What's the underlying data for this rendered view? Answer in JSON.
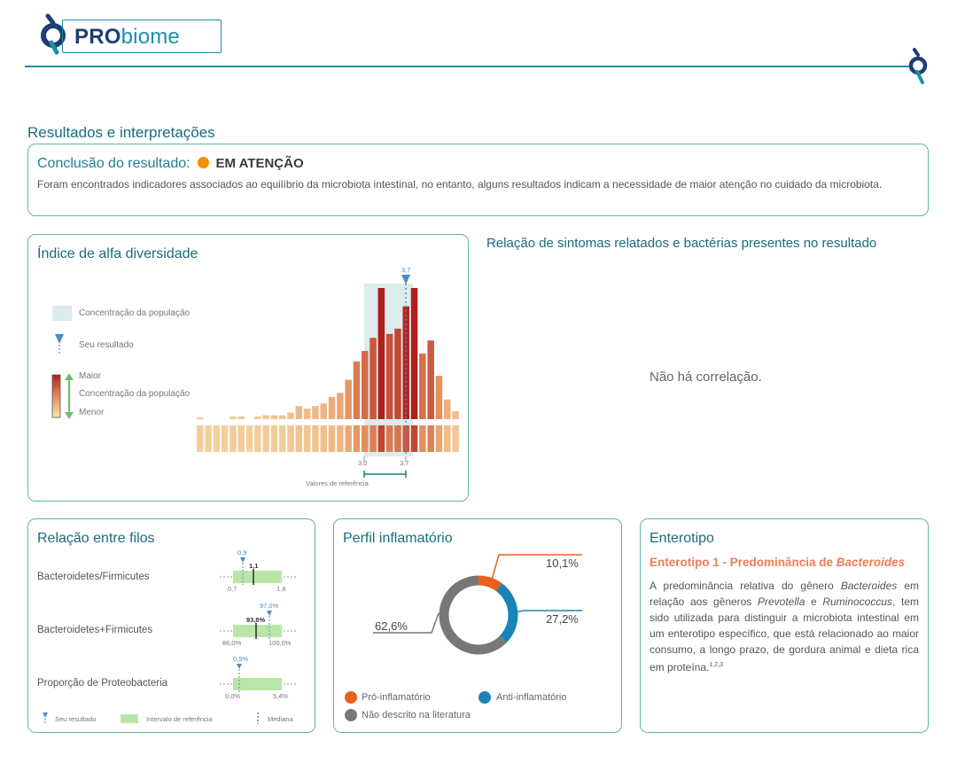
{
  "brand": {
    "pro": "PRO",
    "biome": "biome"
  },
  "section_title": "Resultados e interpretações",
  "conclusion": {
    "label": "Conclusão do resultado:",
    "status": "EM ATENÇÃO",
    "status_color": "#f39200",
    "text": "Foram encontrados indicadores associados ao equilíbrio da microbiota intestinal, no entanto, alguns resultados indicam a necessidade de maior atenção no cuidado da microbiota."
  },
  "alpha": {
    "title": "Índice de alfa diversidade",
    "legend_population": "Concentração da população",
    "legend_result": "Seu resultado",
    "legend_major": "Maior",
    "legend_concentration": "Concentração da população",
    "legend_minor": "Menor",
    "result_value": "3,7",
    "ref_low": "3,0",
    "ref_high": "3,7",
    "ref_label": "Valores de referência"
  },
  "chart_data": {
    "type": "bar",
    "title": "Índice de alfa diversidade",
    "bar_heights_relative": [
      0.01,
      0,
      0,
      0,
      0.02,
      0.02,
      0,
      0.02,
      0.03,
      0.03,
      0.03,
      0.05,
      0.1,
      0.08,
      0.1,
      0.12,
      0.17,
      0.2,
      0.3,
      0.44,
      0.52,
      0.62,
      1.0,
      0.65,
      0.69,
      0.86,
      1.0,
      0.5,
      0.6,
      0.33,
      0.15,
      0.06
    ],
    "reference_range": [
      3.0,
      3.7
    ],
    "result": 3.7
  },
  "relation": {
    "title": "Relação de sintomas relatados e bactérias presentes no resultado",
    "empty": "Não há correlação."
  },
  "filos": {
    "title": "Relação entre filos",
    "rows": [
      {
        "label": "Bacteroidetes/Firmicutes",
        "result": "0,9",
        "median": "1,1",
        "min": "0,7",
        "max": "1,8"
      },
      {
        "label": "Bacteroidetes+Firmicutes",
        "result": "97,0%",
        "median": "93,8%",
        "min": "86,0%",
        "max": "100,0%"
      },
      {
        "label": "Proporção de Proteobacteria",
        "result": "0,5%",
        "median": "",
        "min": "0,0%",
        "max": "5,4%"
      }
    ],
    "legend_result": "Seu resultado",
    "legend_interval": "Intervalo de referência",
    "legend_median": "Mediana"
  },
  "inflam": {
    "title": "Perfil inflamatório",
    "slices": [
      {
        "name": "Pró-inflamatório",
        "value": 10.1,
        "label": "10,1%",
        "color": "#e8601c"
      },
      {
        "name": "Anti-inflamatório",
        "value": 27.2,
        "label": "27,2%",
        "color": "#1a84b8"
      },
      {
        "name": "Não descrito na literatura",
        "value": 62.6,
        "label": "62,6%",
        "color": "#777777"
      }
    ]
  },
  "entero": {
    "title": "Enterotipo",
    "sub_prefix": "Enterotipo 1 - Predominância de ",
    "sub_genus": "Bacteroides",
    "p1": "A predominância relativa do gênero ",
    "g1": "Bacteroides",
    "p2": " em relação aos gêneros ",
    "g2": "Prevotella",
    "p3": " e ",
    "g3": "Ruminococcus",
    "p4": ", tem sido utilizada para distinguir a microbiota intestinal em um enterotipo específico, que está relacionado ao maior consumo, a longo prazo, de gordura animal e dieta rica em proteína.",
    "refs": "1,2,3"
  }
}
